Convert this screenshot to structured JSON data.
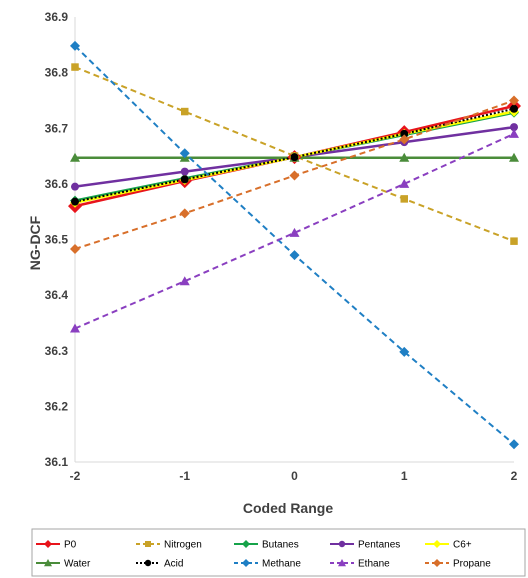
{
  "chart_data": {
    "type": "line",
    "title": "",
    "xlabel": "Coded Range",
    "ylabel": "NG-DCF",
    "x": [
      -2,
      -1,
      0,
      1,
      2
    ],
    "xlim": [
      -2,
      2
    ],
    "ylim": [
      36.1,
      36.9
    ],
    "y_ticks": [
      36.1,
      36.2,
      36.3,
      36.4,
      36.5,
      36.6,
      36.7,
      36.8,
      36.9
    ],
    "x_tick_labels": [
      "-2",
      "-1",
      "0",
      "1",
      "2"
    ],
    "y_tick_labels": [
      "36.1",
      "36.2",
      "36.3",
      "36.4",
      "36.5",
      "36.6",
      "36.7",
      "36.8",
      "36.9"
    ],
    "grid": false,
    "legend_position": "bottom",
    "series": [
      {
        "name": "P0",
        "color": "#e8141b",
        "dash": "solid",
        "marker": "diamond",
        "values": [
          36.56,
          36.605,
          36.648,
          36.693,
          36.74
        ]
      },
      {
        "name": "Nitrogen",
        "color": "#c9a227",
        "dash": "dashed",
        "marker": "square",
        "values": [
          36.81,
          36.73,
          36.65,
          36.573,
          36.497
        ]
      },
      {
        "name": "Butanes",
        "color": "#16a34a",
        "dash": "solid",
        "marker": "diamond",
        "values": [
          36.57,
          36.61,
          36.648,
          36.688,
          36.728
        ]
      },
      {
        "name": "Pentanes",
        "color": "#7030a0",
        "dash": "solid",
        "marker": "circle",
        "values": [
          36.595,
          36.622,
          36.648,
          36.675,
          36.702
        ]
      },
      {
        "name": "C6+",
        "color": "#ffff00",
        "dash": "solid",
        "marker": "diamond",
        "values": [
          36.566,
          36.607,
          36.648,
          36.69,
          36.73
        ]
      },
      {
        "name": "Water",
        "color": "#4a8c3a",
        "dash": "solid",
        "marker": "triangle",
        "values": [
          36.647,
          36.647,
          36.647,
          36.647,
          36.647
        ]
      },
      {
        "name": "Acid",
        "color": "#000000",
        "dash": "dotted",
        "marker": "circle",
        "values": [
          36.568,
          36.608,
          36.648,
          36.69,
          36.735
        ]
      },
      {
        "name": "Methane",
        "color": "#1f7fc4",
        "dash": "dashed",
        "marker": "diamond",
        "values": [
          36.848,
          36.655,
          36.472,
          36.298,
          36.132
        ]
      },
      {
        "name": "Ethane",
        "color": "#8a3fc0",
        "dash": "dashed",
        "marker": "triangle",
        "values": [
          36.34,
          36.425,
          36.512,
          36.6,
          36.69
        ]
      },
      {
        "name": "Propane",
        "color": "#d86f2a",
        "dash": "dashed",
        "marker": "diamond",
        "values": [
          36.483,
          36.547,
          36.615,
          36.68,
          36.75
        ]
      }
    ]
  }
}
